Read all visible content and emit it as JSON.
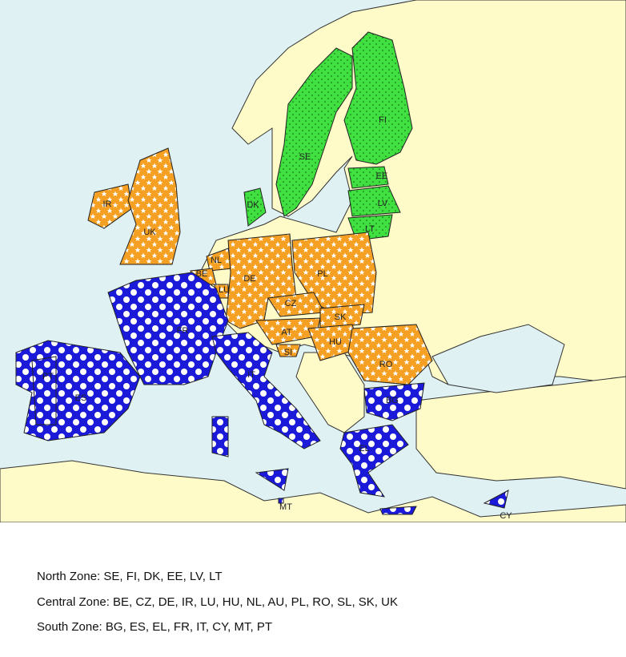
{
  "map": {
    "countries": [
      {
        "code": "FI",
        "zone": "north"
      },
      {
        "code": "SE",
        "zone": "north"
      },
      {
        "code": "DK",
        "zone": "north"
      },
      {
        "code": "EE",
        "zone": "north"
      },
      {
        "code": "LV",
        "zone": "north"
      },
      {
        "code": "LT",
        "zone": "north"
      },
      {
        "code": "IR",
        "zone": "central"
      },
      {
        "code": "UK",
        "zone": "central"
      },
      {
        "code": "NL",
        "zone": "central"
      },
      {
        "code": "BE",
        "zone": "central"
      },
      {
        "code": "LU",
        "zone": "central"
      },
      {
        "code": "DE",
        "zone": "central"
      },
      {
        "code": "PL",
        "zone": "central"
      },
      {
        "code": "CZ",
        "zone": "central"
      },
      {
        "code": "SK",
        "zone": "central"
      },
      {
        "code": "AT",
        "zone": "central"
      },
      {
        "code": "SI",
        "zone": "central"
      },
      {
        "code": "HU",
        "zone": "central"
      },
      {
        "code": "RO",
        "zone": "central"
      },
      {
        "code": "BG",
        "zone": "south"
      },
      {
        "code": "FR",
        "zone": "south"
      },
      {
        "code": "ES",
        "zone": "south"
      },
      {
        "code": "PT",
        "zone": "south"
      },
      {
        "code": "IT",
        "zone": "south"
      },
      {
        "code": "EL",
        "zone": "south"
      },
      {
        "code": "MT",
        "zone": "south"
      },
      {
        "code": "CY",
        "zone": "south"
      }
    ]
  },
  "legend": [
    "North Zone: SE, FI, DK, EE, LV, LT",
    "Central Zone: BE, CZ, DE, IR, LU, HU, NL, AU, PL, RO, SL, SK, UK",
    "South Zone: BG, ES, EL, FR, IT, CY, MT, PT"
  ]
}
